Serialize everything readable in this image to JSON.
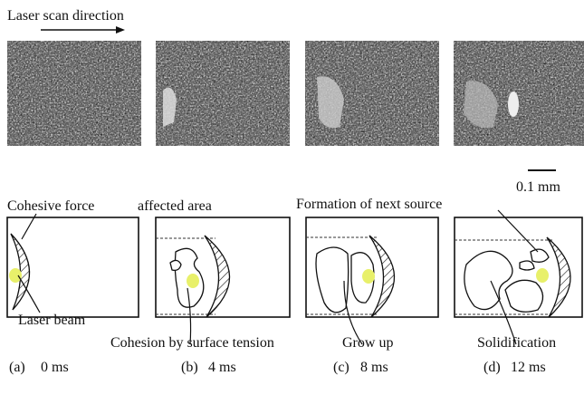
{
  "scan_direction": "Laser scan direction",
  "scale_bar": "0.1 mm",
  "labels": {
    "cohesive_force": "Cohesive force",
    "affected_area": "affected area",
    "laser_beam": "Laser beam",
    "next_source": "Formation of next source",
    "cohesion": "Cohesion by surface tension",
    "grow_up": "Grow up",
    "solidification": "Solidification"
  },
  "panels": [
    {
      "label": "(a)",
      "time": "0 ms"
    },
    {
      "label": "(b)",
      "time": "4 ms"
    },
    {
      "label": "(c)",
      "time": "8 ms"
    },
    {
      "label": "(d)",
      "time": "12 ms"
    }
  ]
}
